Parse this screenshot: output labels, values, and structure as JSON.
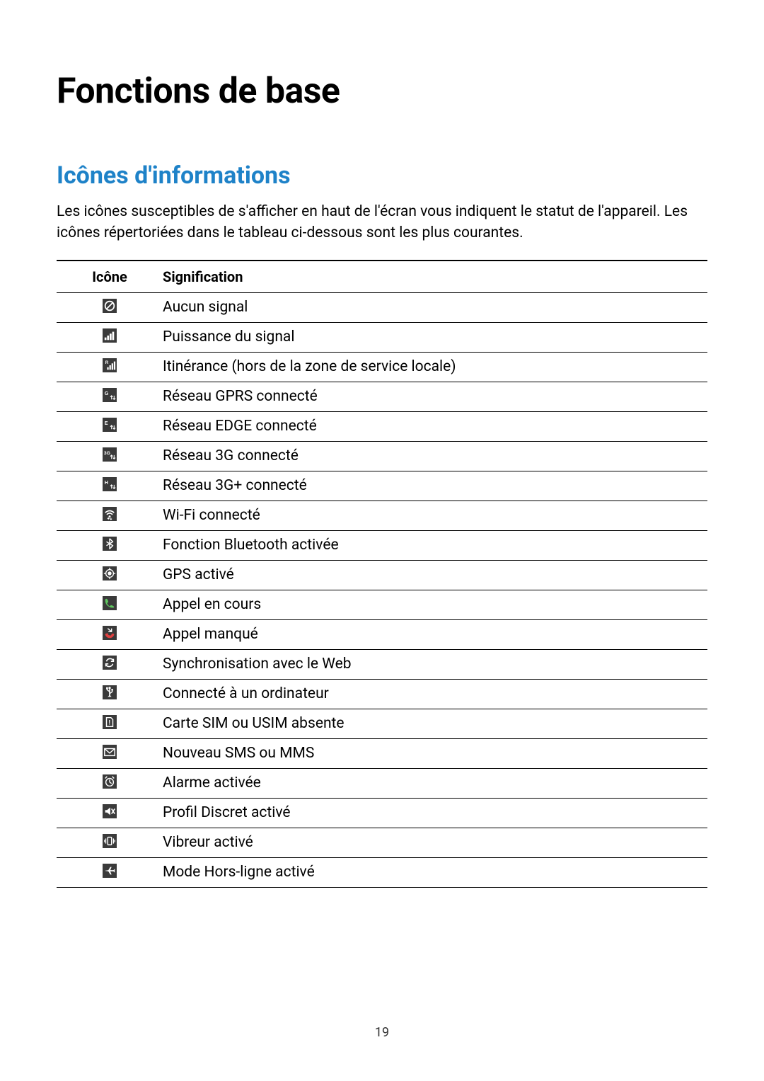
{
  "page": {
    "title": "Fonctions de base",
    "section_title": "Icônes d'informations",
    "intro": "Les icônes susceptibles de s'afficher en haut de l'écran vous indiquent le statut de l'appareil. Les icônes répertoriées dans le tableau ci-dessous sont les plus courantes.",
    "page_number": "19",
    "colors": {
      "heading2": "#1e82c8",
      "text": "#000000",
      "icon_bg": "#3a3a3a",
      "icon_fg": "#ffffff"
    },
    "typography": {
      "h1_size": 50,
      "h2_size": 34,
      "body_size": 21,
      "h1_weight": 700,
      "h2_weight": 700
    },
    "table": {
      "headers": {
        "icon": "Icône",
        "meaning": "Signification"
      },
      "icon_col_width": 150,
      "rows": [
        {
          "icon": "no-signal",
          "meaning": "Aucun signal"
        },
        {
          "icon": "signal",
          "meaning": "Puissance du signal"
        },
        {
          "icon": "roaming",
          "meaning": "Itinérance (hors de la zone de service locale)"
        },
        {
          "icon": "gprs",
          "meaning": "Réseau GPRS connecté"
        },
        {
          "icon": "edge",
          "meaning": "Réseau EDGE connecté"
        },
        {
          "icon": "3g",
          "meaning": "Réseau 3G connecté"
        },
        {
          "icon": "3g-plus",
          "meaning": "Réseau 3G+ connecté"
        },
        {
          "icon": "wifi",
          "meaning": "Wi-Fi connecté"
        },
        {
          "icon": "bluetooth",
          "meaning": "Fonction Bluetooth activée"
        },
        {
          "icon": "gps",
          "meaning": "GPS activé"
        },
        {
          "icon": "call",
          "meaning": "Appel en cours"
        },
        {
          "icon": "missed-call",
          "meaning": "Appel manqué"
        },
        {
          "icon": "sync",
          "meaning": "Synchronisation avec le Web"
        },
        {
          "icon": "usb",
          "meaning": "Connecté à un ordinateur"
        },
        {
          "icon": "sim-absent",
          "meaning": "Carte SIM ou USIM absente"
        },
        {
          "icon": "message",
          "meaning": "Nouveau SMS ou MMS"
        },
        {
          "icon": "alarm",
          "meaning": "Alarme activée"
        },
        {
          "icon": "silent",
          "meaning": "Profil Discret activé"
        },
        {
          "icon": "vibrate",
          "meaning": "Vibreur activé"
        },
        {
          "icon": "airplane",
          "meaning": "Mode Hors-ligne activé"
        }
      ]
    }
  }
}
